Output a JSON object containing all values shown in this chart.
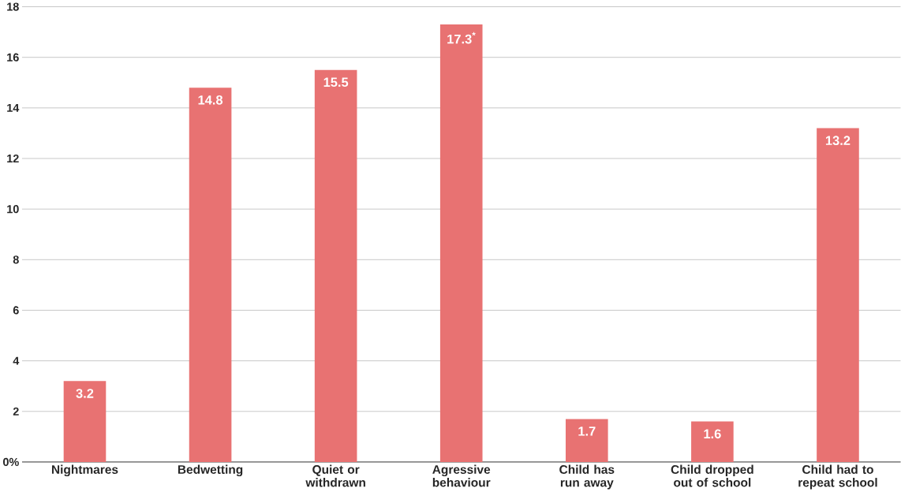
{
  "chart_data": {
    "type": "bar",
    "categories": [
      "Nightmares",
      "Bedwetting",
      "Quiet or withdrawn",
      "Agressive behaviour",
      "Child has run away",
      "Child dropped out of school",
      "Child had to repeat school"
    ],
    "values": [
      3.2,
      14.8,
      15.5,
      17.3,
      1.7,
      1.6,
      13.2
    ],
    "value_labels": [
      "3.2",
      "14.8",
      "15.5",
      "17.3$^{*}$",
      "1.7",
      "1.6",
      "13.2"
    ],
    "color": "#e87272",
    "ylim": [
      0,
      18
    ],
    "yticks": [
      {
        "value": 0,
        "label": "0%"
      },
      2,
      4,
      6,
      8,
      10,
      12,
      14,
      16,
      18
    ],
    "grid": "y"
  }
}
